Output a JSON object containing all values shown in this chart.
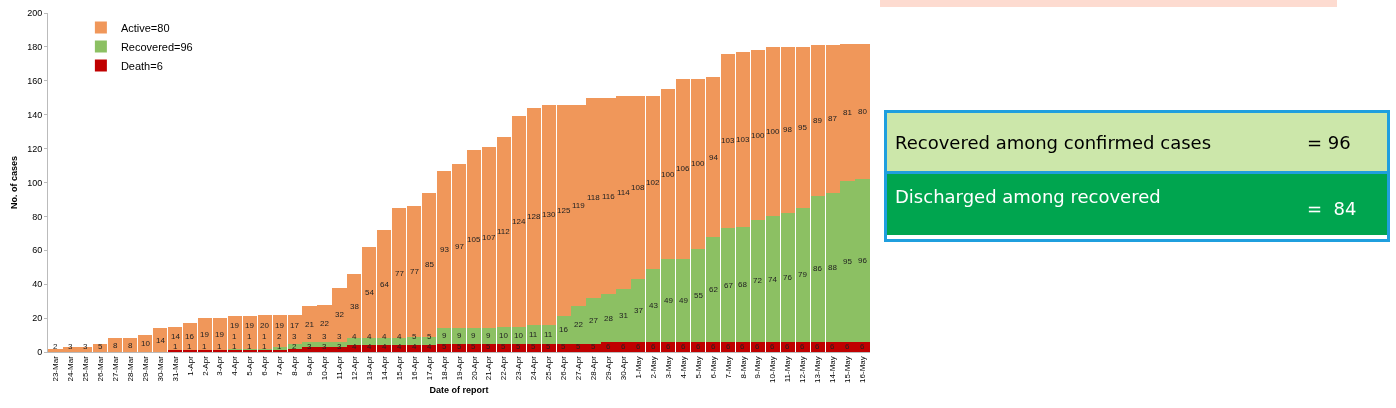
{
  "chart_data": [
    {
      "type": "bar",
      "stacked": true,
      "xlabel": "Date of report",
      "ylabel": "No. of cases",
      "categories": [
        "23-Mar",
        "24-Mar",
        "25-Mar",
        "26-Mar",
        "27-Mar",
        "28-Mar",
        "29-Mar",
        "30-Mar",
        "31-Mar",
        "1-Apr",
        "2-Apr",
        "3-Apr",
        "4-Apr",
        "5-Apr",
        "6-Apr",
        "7-Apr",
        "8-Apr",
        "9-Apr",
        "10-Apr",
        "11-Apr",
        "12-Apr",
        "13-Apr",
        "14-Apr",
        "15-Apr",
        "16-Apr",
        "17-Apr",
        "18-Apr",
        "19-Apr",
        "20-Apr",
        "21-Apr",
        "22-Apr",
        "23-Apr",
        "24-Apr",
        "25-Apr",
        "26-Apr",
        "27-Apr",
        "28-Apr",
        "29-Apr",
        "30-Apr",
        "1-May",
        "2-May",
        "3-May",
        "4-May",
        "5-May",
        "6-May",
        "7-May",
        "8-May",
        "9-May",
        "10-May",
        "11-May",
        "12-May",
        "13-May",
        "14-May",
        "15-May",
        "16-May"
      ],
      "series": [
        {
          "name": "Death=6",
          "color": "#c00000",
          "values": [
            0,
            0,
            0,
            0,
            0,
            0,
            0,
            0,
            1,
            1,
            1,
            1,
            1,
            1,
            1,
            1,
            2,
            3,
            3,
            3,
            4,
            4,
            4,
            4,
            4,
            4,
            5,
            5,
            5,
            5,
            5,
            5,
            5,
            5,
            5,
            5,
            5,
            6,
            6,
            6,
            6,
            6,
            6,
            6,
            6,
            6,
            6,
            6,
            6,
            6,
            6,
            6,
            6,
            6,
            6
          ],
          "value_labels": [
            null,
            null,
            null,
            null,
            null,
            null,
            null,
            null,
            "1",
            "1",
            "1",
            "1",
            "1",
            "1",
            "1",
            "1",
            "2",
            "3",
            "3",
            "3",
            "4",
            "4",
            "4",
            "4",
            "4",
            "4",
            "5",
            "5",
            "5",
            "5",
            "5",
            "5",
            "5",
            "5",
            "5",
            "5",
            "5",
            "6",
            "6",
            "6",
            "6",
            "6",
            "6",
            "6",
            "6",
            "6",
            "6",
            "6",
            "6",
            "6",
            "6",
            "6",
            "6",
            "6",
            "6"
          ]
        },
        {
          "name": "Recovered=96",
          "color": "#8cc063",
          "values": [
            0,
            0,
            0,
            0,
            0,
            0,
            0,
            0,
            0,
            0,
            0,
            0,
            1,
            1,
            1,
            2,
            3,
            3,
            3,
            3,
            4,
            4,
            4,
            4,
            5,
            5,
            9,
            9,
            9,
            9,
            10,
            10,
            11,
            11,
            16,
            22,
            27,
            28,
            31,
            37,
            43,
            49,
            49,
            55,
            62,
            67,
            68,
            72,
            74,
            76,
            79,
            86,
            88,
            95,
            96
          ],
          "value_labels": [
            null,
            null,
            null,
            null,
            null,
            null,
            null,
            null,
            null,
            null,
            null,
            null,
            "1",
            "1",
            "1",
            "2",
            "3",
            "3",
            "3",
            "3",
            "4",
            "4",
            "4",
            "4",
            "5",
            "5",
            "9",
            "9",
            "9",
            "9",
            "10",
            "10",
            "11",
            "11",
            "16",
            "22",
            "27",
            "28",
            "31",
            "37",
            "43",
            "49",
            "49",
            "55",
            "62",
            "67",
            "68",
            "72",
            "74",
            "76",
            "79",
            "86",
            "88",
            "95",
            "96"
          ]
        },
        {
          "name": "Active=80",
          "color": "#f0975a",
          "values": [
            2,
            3,
            3,
            5,
            8,
            8,
            10,
            14,
            14,
            16,
            19,
            19,
            19,
            19,
            20,
            19,
            17,
            21,
            22,
            32,
            38,
            54,
            64,
            77,
            77,
            85,
            93,
            97,
            105,
            107,
            112,
            124,
            128,
            130,
            125,
            119,
            118,
            116,
            114,
            108,
            102,
            100,
            106,
            100,
            94,
            103,
            103,
            100,
            100,
            98,
            95,
            89,
            87,
            81,
            80
          ],
          "value_labels": [
            "2",
            "3",
            "3",
            "5",
            "8",
            "8",
            "10",
            "14",
            "14",
            "16",
            "19",
            "19",
            "19",
            "19",
            "20",
            "19",
            "17",
            "21",
            "22",
            "32",
            "38",
            "54",
            "64",
            "77",
            "77",
            "85",
            "93",
            "97",
            "105",
            "107",
            "112",
            "124",
            "128",
            "130",
            "125",
            "119",
            "118",
            "116",
            "114",
            "108",
            "102",
            "100",
            "106",
            "100",
            "94",
            "103",
            "103",
            "100",
            "100",
            "98",
            "95",
            "89",
            "87",
            "81",
            "80"
          ]
        }
      ],
      "ylim": [
        0,
        200
      ],
      "yticks": [
        0,
        20,
        40,
        60,
        80,
        100,
        120,
        140,
        160,
        180,
        200
      ],
      "grid": false,
      "legend": "top left"
    },
    {
      "type": "other",
      "annotations": [
        "Recovered among confirmed cases",
        "= 96",
        "Discharged among recovered",
        "=  84"
      ]
    }
  ]
}
